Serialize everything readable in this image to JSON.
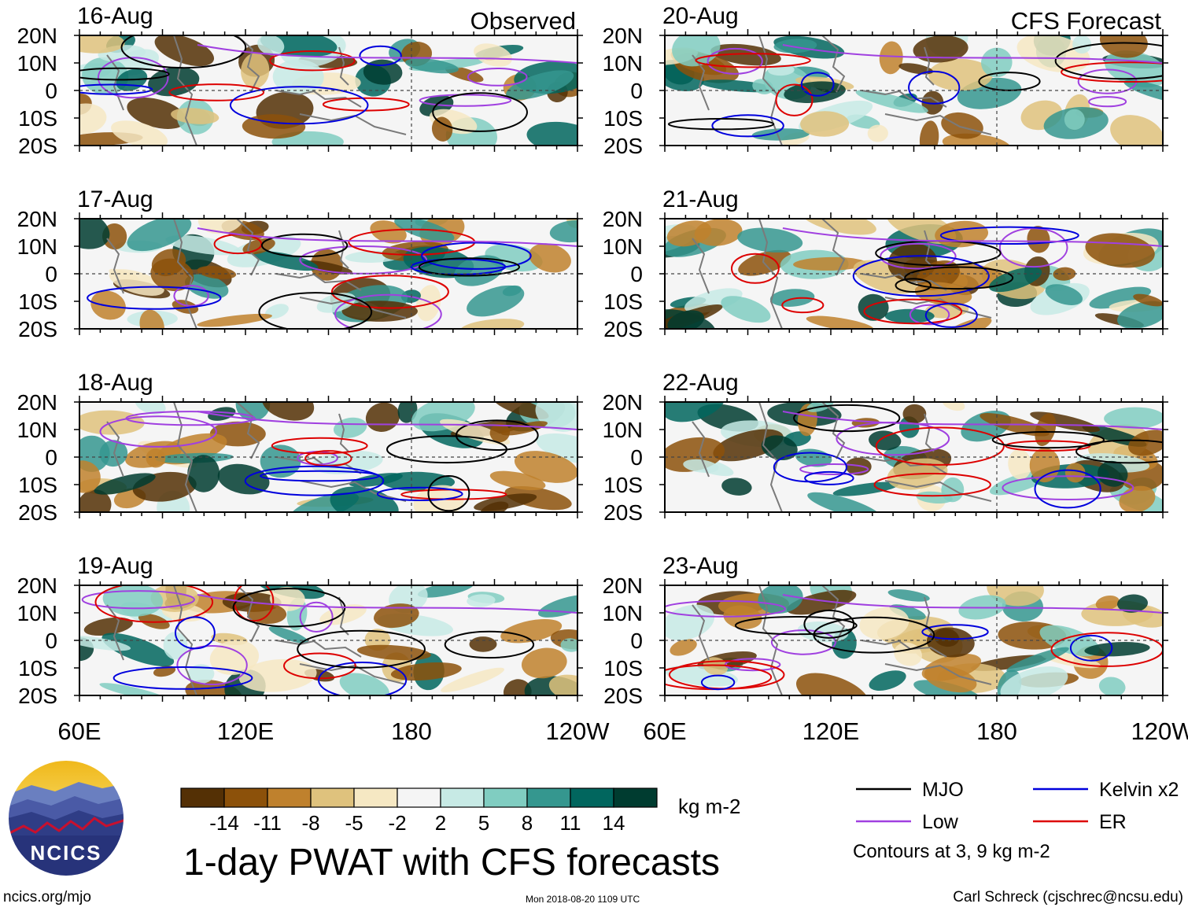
{
  "panels": [
    {
      "date": "16-Aug",
      "tag": "Observed"
    },
    {
      "date": "17-Aug",
      "tag": ""
    },
    {
      "date": "18-Aug",
      "tag": ""
    },
    {
      "date": "19-Aug",
      "tag": ""
    },
    {
      "date": "20-Aug",
      "tag": "CFS Forecast"
    },
    {
      "date": "21-Aug",
      "tag": ""
    },
    {
      "date": "22-Aug",
      "tag": ""
    },
    {
      "date": "23-Aug",
      "tag": ""
    }
  ],
  "chart_data": {
    "type": "heatmap",
    "title": "1-day PWAT with CFS forecasts",
    "x_ticks": [
      "60E",
      "120E",
      "180",
      "120W"
    ],
    "y_ticks": [
      "20N",
      "10N",
      "0",
      "10S",
      "20S"
    ],
    "colorbar": {
      "labels": [
        "-14",
        "-11",
        "-8",
        "-5",
        "-2",
        "2",
        "5",
        "8",
        "11",
        "14"
      ],
      "colors": [
        "#543005",
        "#8c510a",
        "#bf812d",
        "#dfc27d",
        "#f6e8c3",
        "#f5f5f5",
        "#c7eae5",
        "#80cdc1",
        "#35978f",
        "#01665e",
        "#003c30"
      ],
      "units": "kg m-2"
    },
    "legend": [
      {
        "label": "MJO",
        "color": "#000000"
      },
      {
        "label": "Kelvin x2",
        "color": "#0000dd"
      },
      {
        "label": "Low",
        "color": "#a040e0"
      },
      {
        "label": "ER",
        "color": "#dd0000"
      }
    ],
    "contour_note": "Contours at 3, 9 kg m-2"
  },
  "footer": {
    "logo_text": "NCICS",
    "site": "ncics.org/mjo",
    "timestamp": "Mon 2018-08-20 1109 UTC",
    "author": "Carl Schreck (cjschrec@ncsu.edu)"
  }
}
